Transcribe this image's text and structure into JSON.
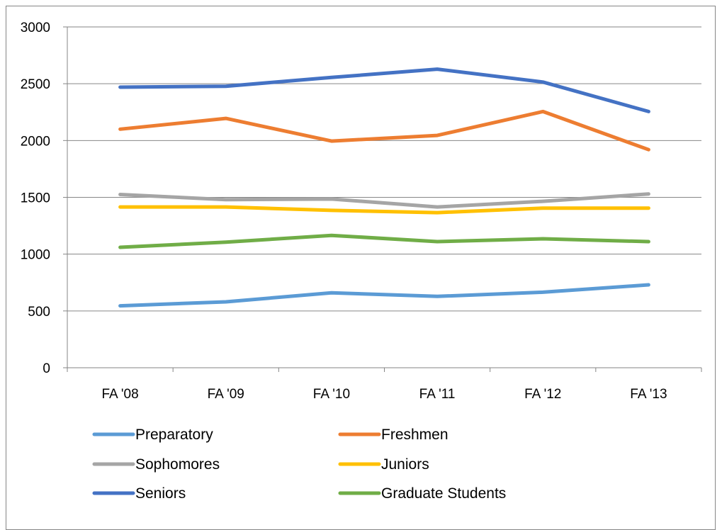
{
  "chart_data": {
    "type": "line",
    "title": "",
    "xlabel": "",
    "ylabel": "",
    "categories": [
      "FA '08",
      "FA '09",
      "FA '10",
      "FA '11",
      "FA '12",
      "FA '13"
    ],
    "ylim": [
      0,
      3000
    ],
    "yticks": [
      0,
      500,
      1000,
      1500,
      2000,
      2500,
      3000
    ],
    "grid": true,
    "legend_position": "bottom",
    "series": [
      {
        "name": "Preparatory",
        "color": "#5B9BD5",
        "values": [
          545,
          580,
          660,
          628,
          665,
          730
        ]
      },
      {
        "name": "Freshmen",
        "color": "#ED7D31",
        "values": [
          2100,
          2195,
          1995,
          2045,
          2255,
          1920
        ]
      },
      {
        "name": "Sophomores",
        "color": "#A5A5A5",
        "values": [
          1525,
          1480,
          1485,
          1415,
          1465,
          1530
        ]
      },
      {
        "name": "Juniors",
        "color": "#FFC000",
        "values": [
          1415,
          1415,
          1385,
          1365,
          1405,
          1405
        ]
      },
      {
        "name": "Seniors",
        "color": "#4472C4",
        "values": [
          2470,
          2478,
          2555,
          2628,
          2515,
          2255
        ]
      },
      {
        "name": "Graduate Students",
        "color": "#70AD47",
        "values": [
          1060,
          1105,
          1165,
          1110,
          1135,
          1110
        ]
      }
    ]
  }
}
